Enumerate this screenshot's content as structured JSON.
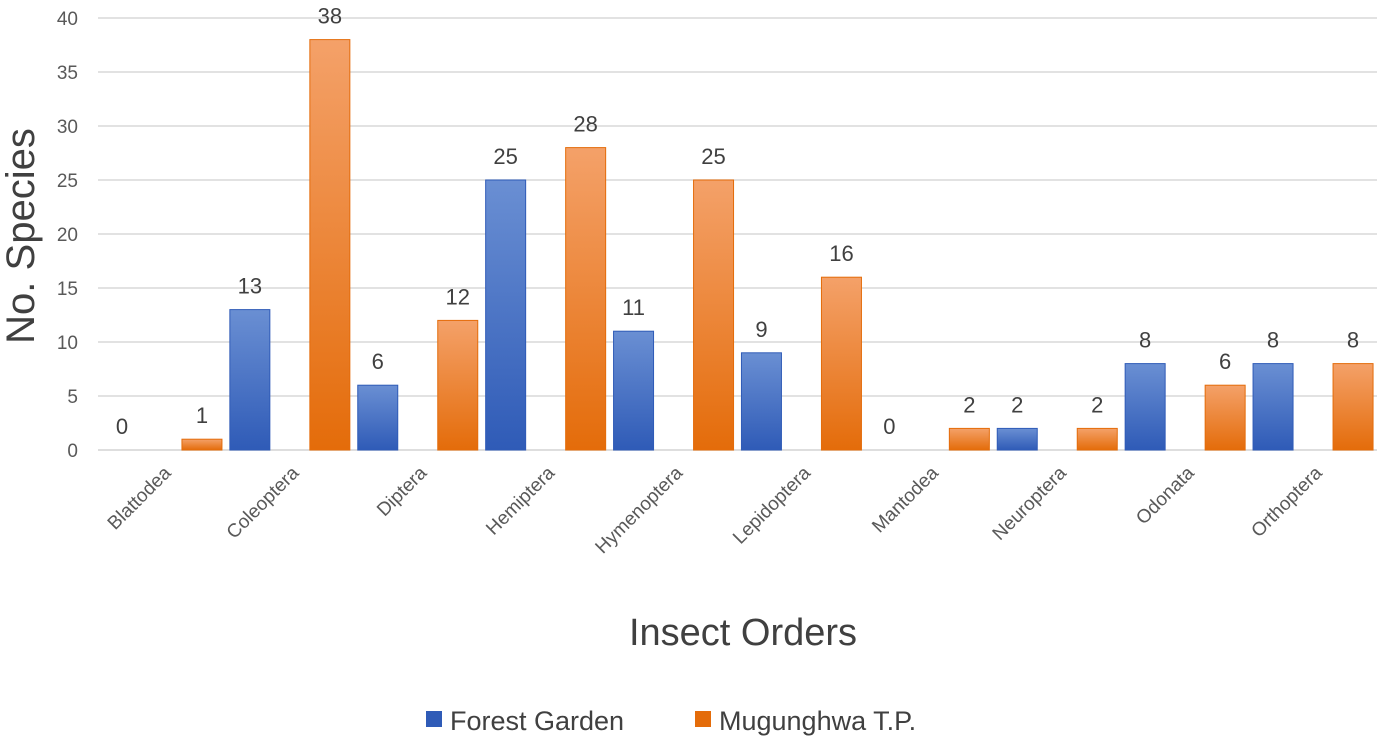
{
  "chart_data": {
    "type": "bar",
    "title": "",
    "xlabel": "Insect Orders",
    "ylabel": "No. Species",
    "ylim": [
      0,
      40
    ],
    "ytick_step": 5,
    "yticks": [
      "0",
      "5",
      "10",
      "15",
      "20",
      "25",
      "30",
      "35",
      "40"
    ],
    "grid": true,
    "legend_position": "bottom",
    "categories": [
      "Blattodea",
      "Coleoptera",
      "Diptera",
      "Hemiptera",
      "Hymenoptera",
      "Lepidoptera",
      "Mantodea",
      "Neuroptera",
      "Odonata",
      "Orthoptera"
    ],
    "series": [
      {
        "name": "Forest Garden",
        "values": [
          0,
          13,
          6,
          25,
          11,
          9,
          0,
          2,
          8,
          8
        ],
        "color": "#4472C4",
        "color_dark": "#2F5BB7"
      },
      {
        "name": "Mugunghwa T.P.",
        "values": [
          1,
          38,
          12,
          28,
          25,
          16,
          2,
          2,
          6,
          8
        ],
        "color": "#F4A169",
        "color_dark": "#E46C0A"
      }
    ]
  }
}
